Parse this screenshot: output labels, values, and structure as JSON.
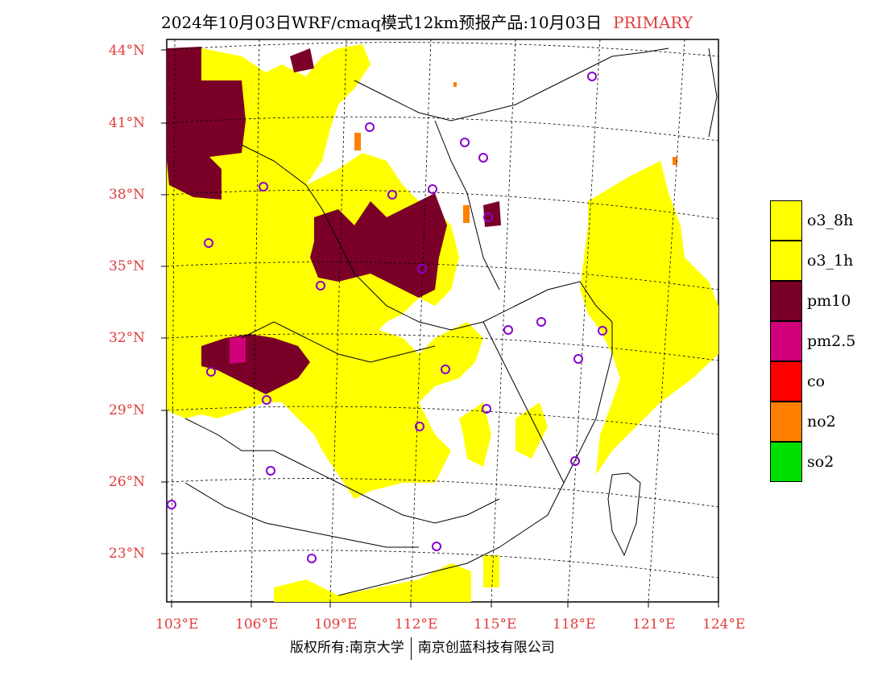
{
  "title": {
    "main": "2024年10月03日WRF/cmaq模式12km预报产品:10月03日",
    "tag": "PRIMARY"
  },
  "axes": {
    "lat_labels": [
      "44°N",
      "41°N",
      "38°N",
      "35°N",
      "32°N",
      "29°N",
      "26°N",
      "23°N"
    ],
    "lon_labels": [
      "103°E",
      "106°E",
      "109°E",
      "112°E",
      "115°E",
      "118°E",
      "121°E",
      "124°E"
    ]
  },
  "legend": [
    {
      "label": "o3_8h",
      "color": "#ffff00"
    },
    {
      "label": "o3_1h",
      "color": "#ffff00"
    },
    {
      "label": "pm10",
      "color": "#7a0028"
    },
    {
      "label": "pm2.5",
      "color": "#d0007a"
    },
    {
      "label": "co",
      "color": "#ff0000"
    },
    {
      "label": "no2",
      "color": "#ff7f00"
    },
    {
      "label": "so2",
      "color": "#00e000"
    }
  ],
  "footer": {
    "left": "版权所有:南京大学",
    "right": "南京创蓝科技有限公司"
  }
}
